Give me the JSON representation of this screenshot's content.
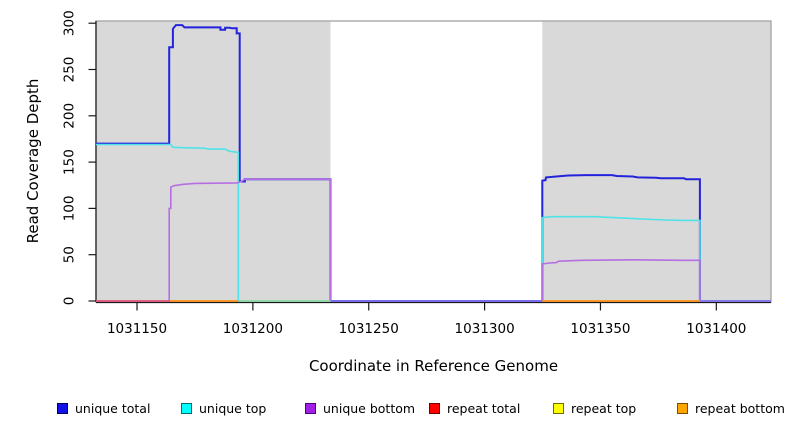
{
  "chart_data": {
    "type": "line",
    "title": "",
    "xlabel": "Coordinate in Reference Genome",
    "ylabel": "Read Coverage Depth",
    "xlim": [
      1031132.3,
      1031423.6
    ],
    "ylim": [
      0,
      300
    ],
    "x_ticks": [
      1031150,
      1031200,
      1031250,
      1031300,
      1031350,
      1031400
    ],
    "y_ticks": [
      0,
      50,
      100,
      150,
      200,
      250,
      300
    ],
    "grid": false,
    "legend_position": "bottom",
    "plot_bg": "#ffffff",
    "box_color": "#a9a9a9",
    "axis_color": "#1a1a1a",
    "background_blocks": [
      {
        "name": "covered-region-left",
        "x0": 1031132.3,
        "x1": 1031233.5,
        "color": "#d9d9d9"
      },
      {
        "name": "covered-region-right",
        "x0": 1031324.9,
        "x1": 1031423.6,
        "color": "#d9d9d9"
      }
    ],
    "series": [
      {
        "name": "unique total",
        "color": "#2323dc",
        "width": 2.0,
        "points": [
          [
            1031132.3,
            170
          ],
          [
            1031163.9,
            170
          ],
          [
            1031163.9,
            274
          ],
          [
            1031165.5,
            274
          ],
          [
            1031165.5,
            294
          ],
          [
            1031166.8,
            298
          ],
          [
            1031169.5,
            298
          ],
          [
            1031170.5,
            295.5
          ],
          [
            1031186,
            295.5
          ],
          [
            1031186,
            293
          ],
          [
            1031188,
            293
          ],
          [
            1031188,
            295
          ],
          [
            1031190,
            295
          ],
          [
            1031191,
            294.5
          ],
          [
            1031193,
            294.5
          ],
          [
            1031193,
            289
          ],
          [
            1031194.3,
            289
          ],
          [
            1031194.3,
            129
          ],
          [
            1031196.5,
            129
          ],
          [
            1031196.5,
            131.5
          ],
          [
            1031233.5,
            131.5
          ],
          [
            1031233.5,
            0
          ],
          [
            1031324.9,
            0
          ],
          [
            1031324.9,
            130
          ],
          [
            1031326.3,
            130.5
          ],
          [
            1031326.5,
            133.5
          ],
          [
            1031331,
            134.5
          ],
          [
            1031336,
            135.5
          ],
          [
            1031344,
            136
          ],
          [
            1031355,
            136
          ],
          [
            1031357,
            135
          ],
          [
            1031364,
            134.5
          ],
          [
            1031366,
            133.5
          ],
          [
            1031374,
            133
          ],
          [
            1031376,
            132.5
          ],
          [
            1031386,
            132.5
          ],
          [
            1031387,
            131.5
          ],
          [
            1031392.9,
            131.5
          ],
          [
            1031392.9,
            0
          ],
          [
            1031423.6,
            0
          ]
        ]
      },
      {
        "name": "unique top",
        "color": "#4fe2e8",
        "width": 1.6,
        "points": [
          [
            1031132.3,
            169
          ],
          [
            1031164.5,
            169
          ],
          [
            1031165.5,
            166
          ],
          [
            1031170,
            165.5
          ],
          [
            1031179,
            165
          ],
          [
            1031181,
            164
          ],
          [
            1031188,
            164
          ],
          [
            1031189.5,
            162
          ],
          [
            1031192,
            161
          ],
          [
            1031193.7,
            160.5
          ],
          [
            1031193.7,
            0
          ],
          [
            1031324.9,
            0
          ],
          [
            1031324.9,
            90
          ],
          [
            1031328,
            91
          ],
          [
            1031348,
            91
          ],
          [
            1031352,
            90.5
          ],
          [
            1031360,
            89.5
          ],
          [
            1031368,
            88.5
          ],
          [
            1031378,
            87.5
          ],
          [
            1031386,
            87
          ],
          [
            1031392.9,
            87
          ],
          [
            1031392.9,
            0
          ],
          [
            1031423.6,
            0
          ]
        ]
      },
      {
        "name": "unique bottom",
        "color": "#b56fe2",
        "width": 1.6,
        "points": [
          [
            1031132.3,
            0
          ],
          [
            1031163.9,
            0
          ],
          [
            1031163.9,
            100
          ],
          [
            1031164.6,
            100
          ],
          [
            1031164.6,
            123
          ],
          [
            1031166,
            124.5
          ],
          [
            1031170,
            126
          ],
          [
            1031175,
            127
          ],
          [
            1031193,
            127.5
          ],
          [
            1031195,
            129
          ],
          [
            1031196.5,
            131.5
          ],
          [
            1031233.5,
            131.5
          ],
          [
            1031233.5,
            0
          ],
          [
            1031324.9,
            0
          ],
          [
            1031324.9,
            40
          ],
          [
            1031328,
            41
          ],
          [
            1031331,
            41.5
          ],
          [
            1031332,
            43
          ],
          [
            1031342,
            44
          ],
          [
            1031364,
            44.5
          ],
          [
            1031385,
            44
          ],
          [
            1031392.9,
            44
          ],
          [
            1031392.9,
            0
          ],
          [
            1031423.6,
            0
          ]
        ]
      }
    ],
    "zero_level_segments": [
      {
        "name": "repeat total",
        "color": "#e05878",
        "x0": 1031132.3,
        "x1": 1031164.3,
        "y": 0
      },
      {
        "name": "repeat bottom",
        "color": "#ff9015",
        "x0": 1031164.3,
        "x1": 1031193.7,
        "y": 0
      },
      {
        "name": "unique top / repeat top overlap",
        "color": "#93d6a4",
        "x0": 1031194.3,
        "x1": 1031233.5,
        "y": 0
      },
      {
        "name": "unique total / unique bottom overlap",
        "color": "#7b68ee",
        "x0": 1031233.5,
        "x1": 1031324.9,
        "y": 0
      },
      {
        "name": "repeat bottom",
        "color": "#ff9015",
        "x0": 1031324.9,
        "x1": 1031392.9,
        "y": 0
      },
      {
        "name": "unique total / unique bottom overlap",
        "color": "#8678ea",
        "x0": 1031392.9,
        "x1": 1031423.6,
        "y": 0
      }
    ],
    "legend": [
      {
        "label": "unique total",
        "fill": "#1111e8",
        "border": "#000060"
      },
      {
        "label": "unique top",
        "fill": "#00ffff",
        "border": "#006e6e"
      },
      {
        "label": "unique bottom",
        "fill": "#a21fe8",
        "border": "#4d0080"
      },
      {
        "label": "repeat total",
        "fill": "#ff0000",
        "border": "#6e0000"
      },
      {
        "label": "repeat top",
        "fill": "#ffff00",
        "border": "#6e6e00"
      },
      {
        "label": "repeat bottom",
        "fill": "#ffa500",
        "border": "#7a4d00"
      }
    ]
  }
}
